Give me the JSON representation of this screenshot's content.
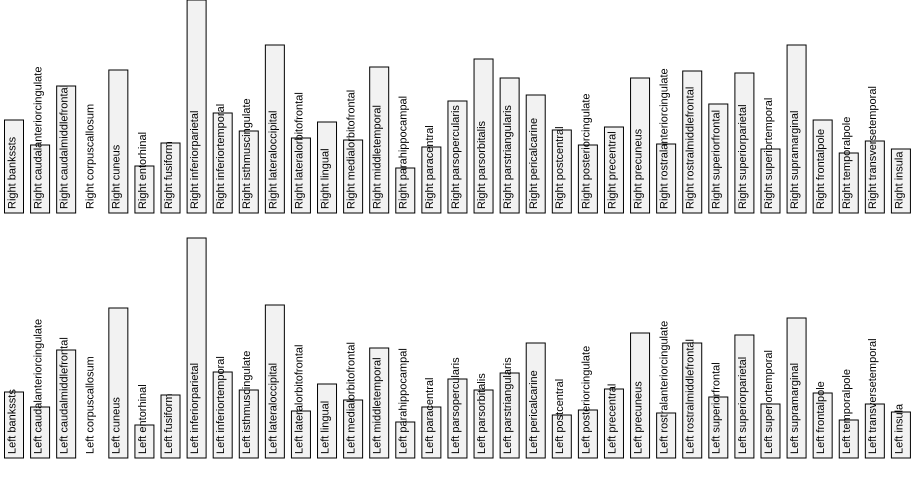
{
  "chart_data": [
    {
      "type": "bar",
      "color": "#f2f2f2",
      "ylim": [
        0,
        213
      ],
      "categories": [
        "Right bankssts",
        "Right caudalanteriorcingulate",
        "Right caudalmiddlefrontal",
        "Right corpuscallosum",
        "Right cuneus",
        "Right entorhinal",
        "Right fusiform",
        "Right inferiorparietal",
        "Right inferiortemporal",
        "Right isthmuscingulate",
        "Right lateraloccipital",
        "Right lateralorbitofrontal",
        "Right lingual",
        "Right medialorbitofrontal",
        "Right middletemporal",
        "Right parahippocampal",
        "Right paracentral",
        "Right parsopercularis",
        "Right parsorbitalis",
        "Right parstriangularis",
        "Right pericalcarine",
        "Right postcentral",
        "Right posteriorcingulate",
        "Right precentral",
        "Right precuneus",
        "Right rostralanteriorcingulate",
        "Right rostralmiddlefrontal",
        "Right superiorfrontal",
        "Right superiorparietal",
        "Right superiortemporal",
        "Right supramarginal",
        "Right frontalpole",
        "Right temporalpole",
        "Right transversetemporal",
        "Right insula"
      ],
      "values": [
        93,
        68,
        127,
        0,
        143,
        47,
        70,
        213,
        100,
        82,
        168,
        75,
        91,
        73,
        146,
        45,
        66,
        112,
        154,
        135,
        118,
        83,
        68,
        86,
        135,
        69,
        142,
        109,
        140,
        64,
        168,
        93,
        60,
        72,
        64
      ]
    },
    {
      "type": "bar",
      "color": "#f2f2f2",
      "ylim": [
        0,
        220
      ],
      "categories": [
        "Left bankssts",
        "Left caudalanteriorcingulate",
        "Left caudalmiddlefrontal",
        "Left corpuscallosum",
        "Left cuneus",
        "Left entorhinal",
        "Left fusiform",
        "Left inferiorparietal",
        "Left inferiortemporal",
        "Left isthmuscingulate",
        "Left lateraloccipital",
        "Left lateralorbitofrontal",
        "Left lingual",
        "Left medialorbitofrontal",
        "Left middletemporal",
        "Left parahippocampal",
        "Left paracentral",
        "Left parsopercularis",
        "Left parsorbitalis",
        "Left parstriangularis",
        "Left pericalcarine",
        "Left postcentral",
        "Left posteriorcingulate",
        "Left precentral",
        "Left precuneus",
        "Left rostralanteriorcingulate",
        "Left rostralmiddlefrontal",
        "Left superiorfrontal",
        "Left superiorparietal",
        "Left superiortemporal",
        "Left supramarginal",
        "Left frontalpole",
        "Left temporalpole",
        "Left transversetemporal",
        "Left insula"
      ],
      "values": [
        66,
        51,
        108,
        0,
        150,
        33,
        63,
        220,
        86,
        68,
        153,
        47,
        74,
        58,
        110,
        36,
        51,
        79,
        68,
        85,
        115,
        43,
        48,
        69,
        125,
        45,
        115,
        61,
        123,
        54,
        140,
        65,
        38,
        54,
        46
      ]
    }
  ]
}
